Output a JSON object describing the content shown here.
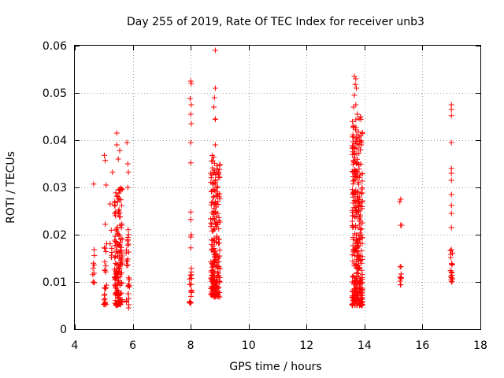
{
  "chart_data": {
    "type": "scatter",
    "title": "Day 255 of 2019, Rate Of TEC Index for receiver unb3",
    "xlabel": "GPS time / hours",
    "ylabel": "ROTI / TECUs",
    "xlim": [
      4,
      18
    ],
    "ylim": [
      0,
      0.06
    ],
    "x_ticks": [
      4,
      6,
      8,
      10,
      12,
      14,
      16,
      18
    ],
    "x_tick_labels": [
      "4",
      "6",
      "8",
      "10",
      "12",
      "14",
      "16",
      "18"
    ],
    "y_ticks": [
      0,
      0.01,
      0.02,
      0.03,
      0.04,
      0.05,
      0.06
    ],
    "y_tick_labels": [
      "0",
      "0.01",
      "0.02",
      "0.03",
      "0.04",
      "0.05",
      "0.06"
    ],
    "grid": true,
    "marker": "+",
    "series": [
      {
        "name": "ROTI",
        "color": "#ff0000",
        "clusters": [
          {
            "x_center": 4.65,
            "x_spread": 0.03,
            "y_min": 0.0098,
            "y_max": 0.0172,
            "count": 10,
            "extra": [
              [
                4.65,
                0.0307
              ]
            ]
          },
          {
            "x_center": 5.05,
            "x_spread": 0.06,
            "y_min": 0.0052,
            "y_max": 0.0192,
            "count": 24,
            "extra": [
              [
                5.02,
                0.0368
              ],
              [
                5.05,
                0.0357
              ],
              [
                5.08,
                0.0305
              ],
              [
                5.05,
                0.0222
              ]
            ]
          },
          {
            "x_center": 5.25,
            "x_spread": 0.04,
            "y_min": 0.015,
            "y_max": 0.0212,
            "count": 6,
            "extra": [
              [
                5.22,
                0.0265
              ],
              [
                5.3,
                0.0332
              ]
            ]
          },
          {
            "x_center": 5.5,
            "x_spread": 0.14,
            "y_min": 0.005,
            "y_max": 0.03,
            "count": 170,
            "extra": [
              [
                5.45,
                0.0415
              ],
              [
                5.45,
                0.039
              ],
              [
                5.55,
                0.0378
              ],
              [
                5.5,
                0.036
              ]
            ]
          },
          {
            "x_center": 5.83,
            "x_spread": 0.06,
            "y_min": 0.0045,
            "y_max": 0.022,
            "count": 30,
            "extra": [
              [
                5.8,
                0.0395
              ],
              [
                5.83,
                0.035
              ],
              [
                5.85,
                0.0332
              ],
              [
                5.83,
                0.03
              ]
            ]
          },
          {
            "x_center": 8.0,
            "x_spread": 0.04,
            "y_min": 0.0055,
            "y_max": 0.013,
            "count": 20,
            "extra": [
              [
                8.0,
                0.0525
              ],
              [
                8.02,
                0.052
              ],
              [
                7.98,
                0.0488
              ],
              [
                8.02,
                0.0475
              ],
              [
                8.0,
                0.0455
              ],
              [
                8.02,
                0.0435
              ],
              [
                8.0,
                0.0395
              ],
              [
                8.0,
                0.0352
              ],
              [
                8.0,
                0.0248
              ],
              [
                8.0,
                0.0232
              ],
              [
                8.02,
                0.02
              ],
              [
                8.0,
                0.0195
              ],
              [
                8.0,
                0.0172
              ]
            ]
          },
          {
            "x_center": 8.85,
            "x_spread": 0.16,
            "y_min": 0.0068,
            "y_max": 0.037,
            "count": 230,
            "extra": [
              [
                8.85,
                0.059
              ],
              [
                8.85,
                0.051
              ],
              [
                8.82,
                0.049
              ],
              [
                8.8,
                0.047
              ],
              [
                8.85,
                0.0445
              ],
              [
                8.85,
                0.0444
              ],
              [
                8.85,
                0.039
              ]
            ]
          },
          {
            "x_center": 13.75,
            "x_spread": 0.18,
            "y_min": 0.005,
            "y_max": 0.045,
            "count": 340,
            "extra": [
              [
                13.65,
                0.0535
              ],
              [
                13.7,
                0.053
              ],
              [
                13.68,
                0.0518
              ],
              [
                13.72,
                0.051
              ],
              [
                13.65,
                0.0495
              ],
              [
                13.7,
                0.0475
              ],
              [
                13.62,
                0.047
              ],
              [
                13.75,
                0.0455
              ]
            ]
          },
          {
            "x_center": 15.25,
            "x_spread": 0.03,
            "y_min": 0.0092,
            "y_max": 0.015,
            "count": 10,
            "extra": [
              [
                15.25,
                0.0275
              ],
              [
                15.22,
                0.027
              ],
              [
                15.25,
                0.022
              ],
              [
                15.28,
                0.022
              ]
            ]
          },
          {
            "x_center": 17.0,
            "x_spread": 0.04,
            "y_min": 0.01,
            "y_max": 0.0185,
            "count": 18,
            "extra": [
              [
                17.0,
                0.0475
              ],
              [
                17.0,
                0.0465
              ],
              [
                17.0,
                0.0452
              ],
              [
                17.0,
                0.0395
              ],
              [
                17.0,
                0.034
              ],
              [
                17.0,
                0.033
              ],
              [
                17.0,
                0.0315
              ],
              [
                17.0,
                0.0285
              ],
              [
                17.0,
                0.0262
              ],
              [
                17.0,
                0.0245
              ],
              [
                17.0,
                0.0215
              ]
            ]
          }
        ]
      }
    ]
  }
}
